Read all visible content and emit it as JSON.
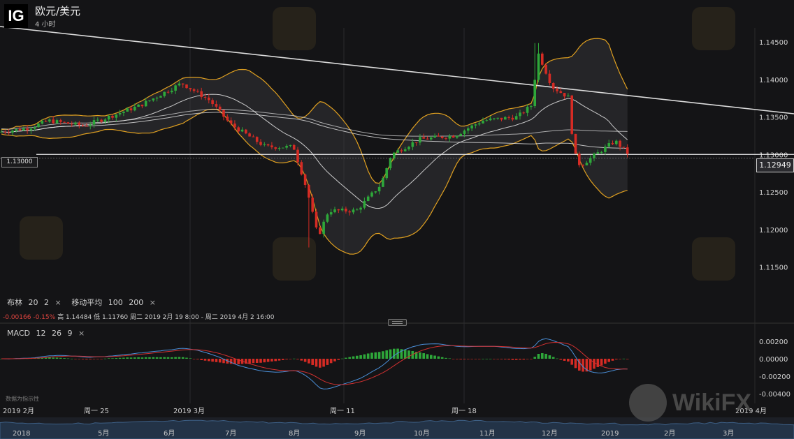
{
  "header": {
    "logo": "IG",
    "title": "欧元/美元",
    "timeframe": "4 小时"
  },
  "price_axis": {
    "labels": [
      "1.14500",
      "1.14000",
      "1.13500",
      "1.13000",
      "1.12500",
      "1.12000",
      "1.11500"
    ],
    "current_price": "1.12949",
    "horizontal_line_label": "1.13000"
  },
  "indicators": {
    "bollinger": {
      "name": "布林",
      "period": "20",
      "dev": "2"
    },
    "ma": {
      "name": "移动平均",
      "p1": "100",
      "p2": "200"
    },
    "remove": "×"
  },
  "stats": {
    "change": "-0.00166",
    "change_pct": "-0.15%",
    "high_label": "高",
    "high": "1.14484",
    "low_label": "低",
    "low": "1.11760",
    "range": "周二 2019 2月 19 8:00 - 周二 2019 4月 2 16:00"
  },
  "macd": {
    "name": "MACD",
    "fast": "12",
    "slow": "26",
    "signal": "9",
    "axis_labels": [
      "0.00200",
      "0.00000",
      "-0.00200",
      "-0.00400"
    ],
    "note": "数据为指示性"
  },
  "time_axis": {
    "labels": [
      "2019 2月",
      "周一 25",
      "2019 3月",
      "周一 11",
      "周一 18",
      "2019 4月"
    ]
  },
  "navigator": {
    "labels": [
      "2018",
      "5月",
      "6月",
      "7月",
      "8月",
      "9月",
      "10月",
      "11月",
      "12月",
      "2019",
      "2月",
      "3月"
    ]
  },
  "watermark": {
    "text": "WikiFX"
  },
  "colors": {
    "up": "#2ea83a",
    "down": "#d52b24",
    "bollinger": "#e0a020",
    "ma": "#e6e6e6",
    "macd": "#4a8fd8",
    "signal": "#d03030"
  }
}
